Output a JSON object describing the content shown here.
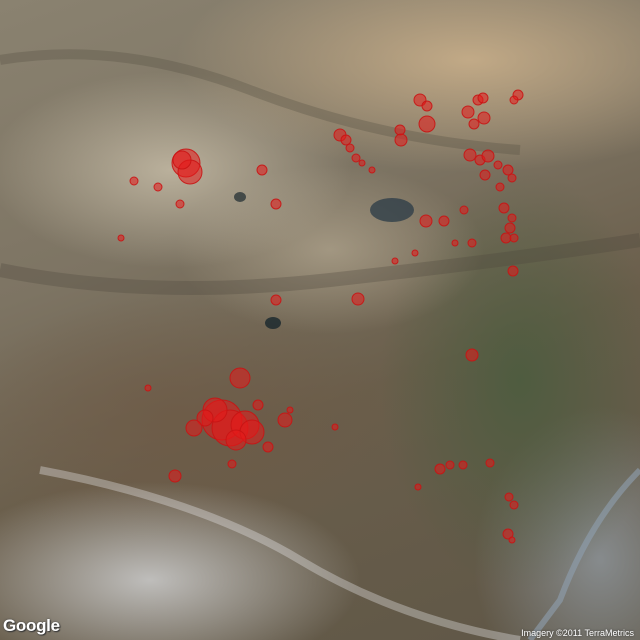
{
  "map": {
    "type": "satellite",
    "marker_color": "#e61919",
    "earthquake_markers": 140
  },
  "branding": {
    "logo": "Google",
    "attribution": "Imagery ©2011 TerraMetrics"
  }
}
